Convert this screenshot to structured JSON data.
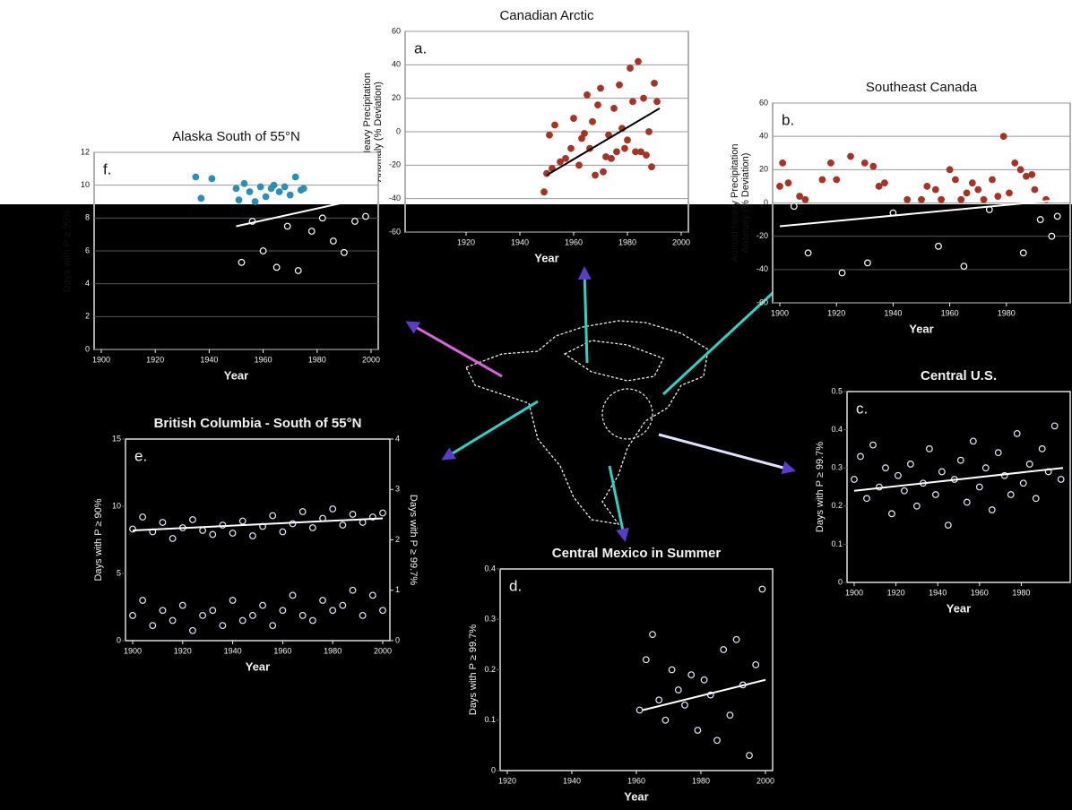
{
  "chart_data": [
    {
      "type": "scatter",
      "title": "Canadian Arctic",
      "panel_label": "a.",
      "y_label": [
        "Annual Heavy Precipitation",
        "Anomaly (% Deviation)"
      ],
      "x_label": "Year",
      "xlim": [
        1900,
        2000
      ],
      "xticks": [
        1920,
        1940,
        1960,
        1980,
        2000
      ],
      "ylim": [
        -60,
        60
      ],
      "yticks": [
        -60,
        -40,
        -20,
        0,
        20,
        40,
        60
      ],
      "grid": true,
      "series": [
        {
          "color": "#a83224",
          "x": [
            1949,
            1950,
            1951,
            1952,
            1953,
            1955,
            1957,
            1959,
            1960,
            1962,
            1963,
            1964,
            1965,
            1966,
            1967,
            1968,
            1969,
            1970,
            1971,
            1972,
            1973,
            1974,
            1975,
            1976,
            1977,
            1978,
            1979,
            1980,
            1981,
            1982,
            1983,
            1984,
            1985,
            1986,
            1987,
            1988,
            1989,
            1990,
            1991
          ],
          "values": [
            -36,
            -25,
            -2,
            -22,
            4,
            -18,
            -16,
            -10,
            8,
            -20,
            -4,
            -1,
            22,
            -10,
            6,
            -26,
            16,
            26,
            -24,
            -15,
            -2,
            -16,
            14,
            -12,
            28,
            2,
            -10,
            -5,
            38,
            18,
            -12,
            42,
            -12,
            20,
            -14,
            0,
            -21,
            29,
            18
          ],
          "trend": {
            "x": [
              1950,
              1992
            ],
            "values": [
              -26,
              14
            ]
          }
        }
      ]
    },
    {
      "type": "scatter",
      "title": "Southeast Canada",
      "panel_label": "b.",
      "y_label": [
        "Annual Heavy Precipitation",
        "Anomaly (% Deviation)"
      ],
      "x_label": "Year",
      "xlim": [
        1900,
        2000
      ],
      "xticks": [
        1900,
        1920,
        1940,
        1960,
        1980
      ],
      "ylim": [
        -60,
        60
      ],
      "yticks": [
        -60,
        -40,
        -20,
        0,
        20,
        40,
        60
      ],
      "grid": true,
      "series": [
        {
          "color": "#a83224",
          "x": [
            1900,
            1901,
            1903,
            1905,
            1907,
            1909,
            1910,
            1915,
            1918,
            1920,
            1922,
            1925,
            1930,
            1931,
            1933,
            1935,
            1937,
            1940,
            1945,
            1950,
            1952,
            1955,
            1956,
            1957,
            1960,
            1962,
            1964,
            1965,
            1966,
            1968,
            1970,
            1972,
            1974,
            1975,
            1977,
            1979,
            1981,
            1983,
            1985,
            1986,
            1987,
            1989,
            1990,
            1992,
            1994,
            1996,
            1998
          ],
          "values": [
            10,
            24,
            12,
            -2,
            4,
            2,
            -30,
            14,
            24,
            14,
            -42,
            28,
            24,
            -36,
            22,
            10,
            12,
            -6,
            2,
            2,
            10,
            8,
            -26,
            2,
            20,
            14,
            2,
            -38,
            6,
            12,
            8,
            2,
            -4,
            14,
            4,
            40,
            6,
            24,
            20,
            -30,
            16,
            17,
            8,
            -10,
            2,
            -20,
            -8
          ],
          "trend": {
            "x": [
              1900,
              2000
            ],
            "values": [
              -14,
              2
            ]
          }
        }
      ]
    },
    {
      "type": "scatter",
      "title": "Central U.S.",
      "panel_label": "c.",
      "y_label": [
        "Days with P ≥ 99.7%"
      ],
      "x_label": "Year",
      "xlim": [
        1900,
        2000
      ],
      "xticks": [
        1900,
        1920,
        1940,
        1960,
        1980
      ],
      "ylim": [
        0,
        0.5
      ],
      "yticks": [
        0,
        0.1,
        0.2,
        0.3,
        0.4,
        0.5
      ],
      "grid": false,
      "series": [
        {
          "color": "#ffffff",
          "x": [
            1900,
            1903,
            1906,
            1909,
            1912,
            1915,
            1918,
            1921,
            1924,
            1927,
            1930,
            1933,
            1936,
            1939,
            1942,
            1945,
            1948,
            1951,
            1954,
            1957,
            1960,
            1963,
            1966,
            1969,
            1972,
            1975,
            1978,
            1981,
            1984,
            1987,
            1990,
            1993,
            1996,
            1999
          ],
          "values": [
            0.27,
            0.33,
            0.22,
            0.36,
            0.25,
            0.3,
            0.18,
            0.28,
            0.24,
            0.31,
            0.2,
            0.26,
            0.35,
            0.23,
            0.29,
            0.15,
            0.27,
            0.32,
            0.21,
            0.37,
            0.25,
            0.3,
            0.19,
            0.34,
            0.28,
            0.23,
            0.39,
            0.26,
            0.31,
            0.22,
            0.35,
            0.29,
            0.41,
            0.27
          ],
          "trend": {
            "x": [
              1900,
              2000
            ],
            "values": [
              0.24,
              0.3
            ]
          }
        }
      ]
    },
    {
      "type": "scatter",
      "title": "Central Mexico in Summer",
      "panel_label": "d.",
      "y_label": [
        "Days with P ≥ 99.7%"
      ],
      "x_label": "Year",
      "xlim": [
        1920,
        2000
      ],
      "xticks": [
        1920,
        1940,
        1960,
        1980,
        2000
      ],
      "ylim": [
        0,
        0.4
      ],
      "yticks": [
        0,
        0.1,
        0.2,
        0.3,
        0.4
      ],
      "grid": false,
      "series": [
        {
          "color": "#ffffff",
          "x": [
            1961,
            1963,
            1965,
            1967,
            1969,
            1971,
            1973,
            1975,
            1977,
            1979,
            1981,
            1983,
            1985,
            1987,
            1989,
            1991,
            1993,
            1995,
            1997,
            1999
          ],
          "values": [
            0.12,
            0.22,
            0.27,
            0.14,
            0.1,
            0.2,
            0.16,
            0.13,
            0.19,
            0.08,
            0.18,
            0.15,
            0.06,
            0.24,
            0.11,
            0.26,
            0.17,
            0.03,
            0.21,
            0.36
          ],
          "trend": {
            "x": [
              1962,
              2000
            ],
            "values": [
              0.12,
              0.18
            ]
          }
        }
      ]
    },
    {
      "type": "scatter",
      "title": "British Columbia - South of 55°N",
      "panel_label": "e.",
      "y_label": [
        "Days with P ≥ 90%"
      ],
      "y2_label": "Days with P ≥ 99.7%",
      "x_label": "Year",
      "xlim": [
        1900,
        2000
      ],
      "xticks": [
        1900,
        1920,
        1940,
        1960,
        1980,
        2000
      ],
      "ylim": [
        0,
        15
      ],
      "yticks": [
        0,
        5,
        10,
        15
      ],
      "y2lim": [
        0,
        4
      ],
      "y2ticks": [
        0,
        1,
        2,
        3,
        4
      ],
      "grid": false,
      "series": [
        {
          "color": "#ffffff",
          "x": [
            1900,
            1904,
            1908,
            1912,
            1916,
            1920,
            1924,
            1928,
            1932,
            1936,
            1940,
            1944,
            1948,
            1952,
            1956,
            1960,
            1964,
            1968,
            1972,
            1976,
            1980,
            1984,
            1988,
            1992,
            1996,
            2000
          ],
          "values": [
            8.3,
            9.2,
            8.1,
            8.8,
            7.6,
            8.4,
            9.0,
            8.2,
            7.9,
            8.6,
            8.0,
            8.9,
            7.8,
            8.5,
            9.3,
            8.1,
            8.7,
            9.6,
            8.4,
            9.1,
            9.8,
            8.6,
            9.4,
            8.8,
            9.2,
            9.5
          ],
          "trend": {
            "x": [
              1900,
              2000
            ],
            "values": [
              8.2,
              9.1
            ]
          }
        },
        {
          "color": "#ffffff",
          "axis": "y2",
          "x": [
            1900,
            1904,
            1908,
            1912,
            1916,
            1920,
            1924,
            1928,
            1932,
            1936,
            1940,
            1944,
            1948,
            1952,
            1956,
            1960,
            1964,
            1968,
            1972,
            1976,
            1980,
            1984,
            1988,
            1992,
            1996,
            2000
          ],
          "values": [
            0.5,
            0.8,
            0.3,
            0.6,
            0.4,
            0.7,
            0.2,
            0.5,
            0.6,
            0.3,
            0.8,
            0.4,
            0.5,
            0.7,
            0.3,
            0.6,
            0.9,
            0.5,
            0.4,
            0.8,
            0.6,
            0.7,
            1.0,
            0.5,
            0.9,
            0.6
          ]
        }
      ]
    },
    {
      "type": "scatter",
      "title": "Alaska South of 55°N",
      "panel_label": "f.",
      "y_label": [
        "Days with P ≥ 90%"
      ],
      "x_label": "Year",
      "xlim": [
        1900,
        2000
      ],
      "xticks": [
        1900,
        1920,
        1940,
        1960,
        1980,
        2000
      ],
      "ylim": [
        0,
        12
      ],
      "yticks": [
        0,
        2,
        4,
        6,
        8,
        10,
        12
      ],
      "grid": true,
      "series": [
        {
          "color": "#2a8fb5",
          "x": [
            1935,
            1937,
            1941,
            1950,
            1951,
            1953,
            1955,
            1957,
            1959,
            1961,
            1963,
            1964,
            1966,
            1968,
            1970,
            1972,
            1974,
            1975,
            1952,
            1956,
            1960,
            1965,
            1969,
            1973,
            1978,
            1982,
            1986,
            1990,
            1994,
            1998
          ],
          "values": [
            10.5,
            9.2,
            10.4,
            9.8,
            9.1,
            10.1,
            9.6,
            9.0,
            9.9,
            9.3,
            9.8,
            10.0,
            9.6,
            9.9,
            9.4,
            10.5,
            9.7,
            9.8,
            5.3,
            7.8,
            6.0,
            5.0,
            7.5,
            4.8,
            7.2,
            8.0,
            6.6,
            5.9,
            7.8,
            8.1
          ],
          "trend": {
            "x": [
              1950,
              2000
            ],
            "values": [
              7.5,
              9.3
            ]
          }
        }
      ]
    }
  ]
}
